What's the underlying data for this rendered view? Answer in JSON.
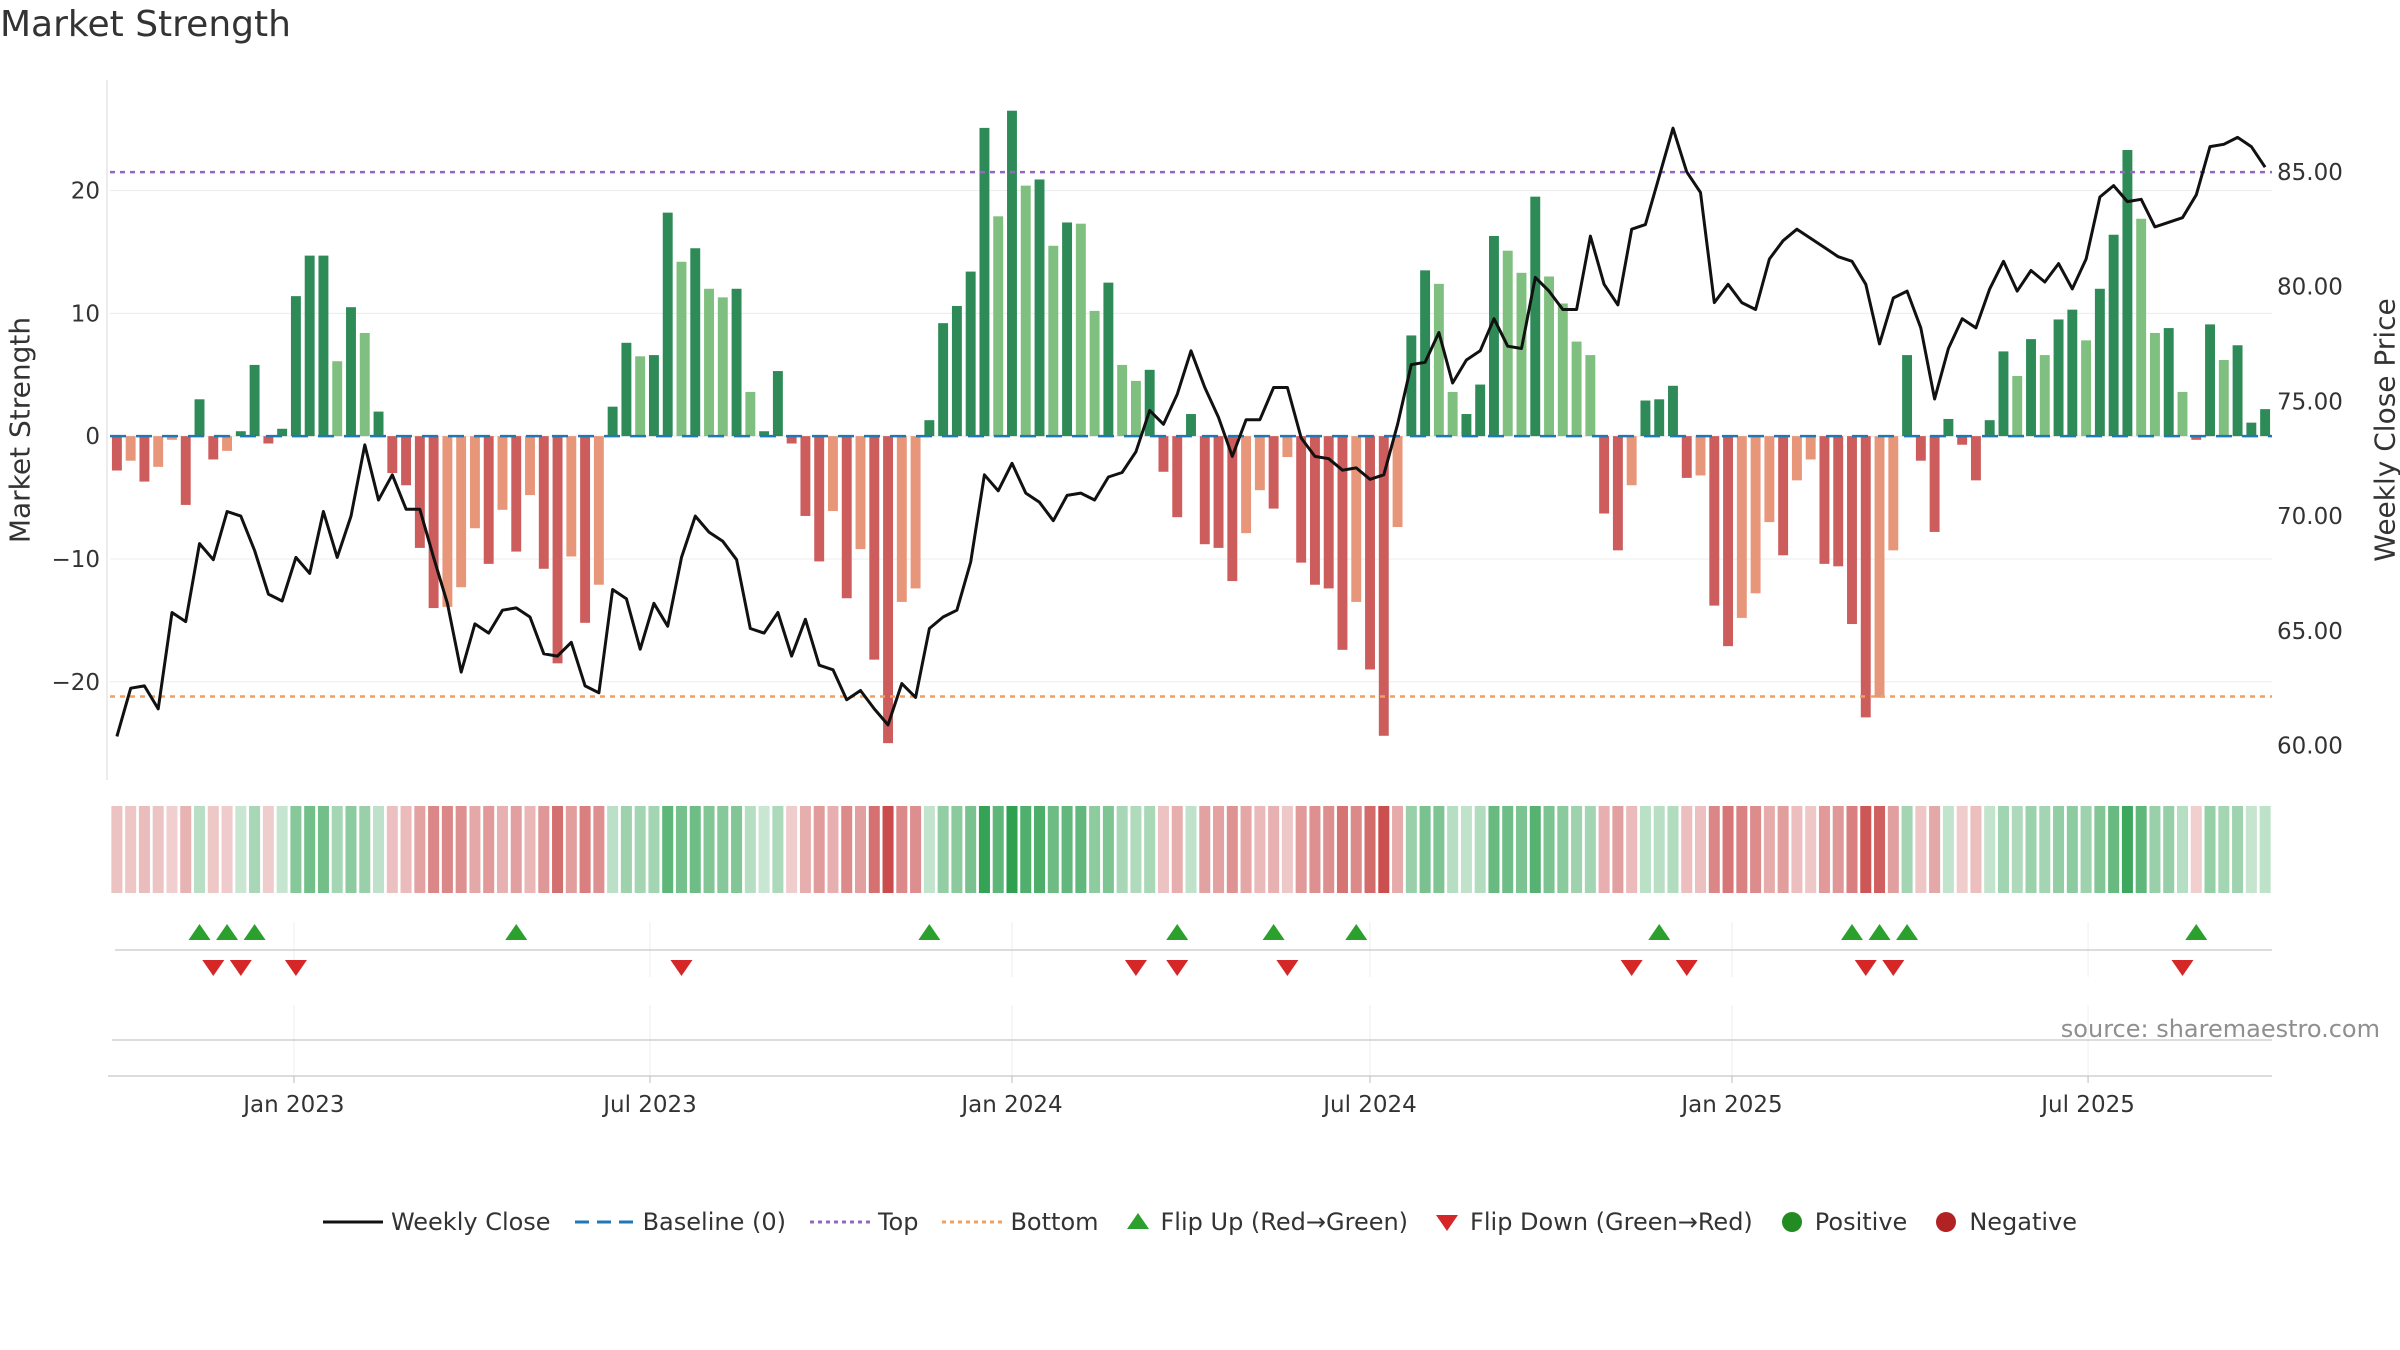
{
  "title": "Market Strength",
  "source": "source: sharemaestro.com",
  "legend": [
    {
      "label": "Weekly Close",
      "kind": "line-solid",
      "color": "#111111"
    },
    {
      "label": "Baseline (0)",
      "kind": "line-dash",
      "color": "#1f77b4"
    },
    {
      "label": "Top",
      "kind": "line-dot",
      "color": "#9467bd"
    },
    {
      "label": "Bottom",
      "kind": "line-dot",
      "color": "#f0a060"
    },
    {
      "label": "Flip Up (Red→Green)",
      "kind": "tri-up",
      "color": "#2ca02c"
    },
    {
      "label": "Flip Down (Green→Red)",
      "kind": "tri-down",
      "color": "#d62728"
    },
    {
      "label": "Positive",
      "kind": "circle",
      "color": "#228b22"
    },
    {
      "label": "Negative",
      "kind": "circle",
      "color": "#b22222"
    }
  ],
  "chart_data": {
    "type": "bar",
    "title": "Market Strength",
    "ylabel": "Market Strength",
    "y2label": "Weekly Close Price",
    "ylim": [
      -28,
      29
    ],
    "y2lim": [
      58.5,
      89
    ],
    "yticks": [
      20,
      10,
      0,
      -10,
      -20
    ],
    "y2ticks": [
      85.0,
      80.0,
      75.0,
      70.0,
      65.0,
      60.0
    ],
    "top_level": 21.5,
    "bottom_level": -21.2,
    "x_start": "2022-10-03",
    "x_ticks": [
      {
        "label": "Jan 2023",
        "date": "2023-01-01"
      },
      {
        "label": "Jul 2023",
        "date": "2023-07-01"
      },
      {
        "label": "Jan 2024",
        "date": "2024-01-01"
      },
      {
        "label": "Jul 2024",
        "date": "2024-07-01"
      },
      {
        "label": "Jan 2025",
        "date": "2025-01-01"
      },
      {
        "label": "Jul 2025",
        "date": "2025-07-01"
      }
    ],
    "strength": [
      -2.8,
      -2,
      -3.7,
      -2.5,
      -0.3,
      -5.6,
      3,
      -1.9,
      -1.2,
      0.4,
      5.8,
      -0.6,
      0.6,
      11.4,
      14.7,
      14.7,
      6.1,
      10.5,
      8.4,
      2,
      -3,
      -4,
      -9.1,
      -14,
      -13.9,
      -12.3,
      -7.5,
      -10.4,
      -6,
      -9.4,
      -4.8,
      -10.8,
      -18.5,
      -9.8,
      -15.2,
      -12.1,
      2.4,
      7.6,
      6.5,
      6.6,
      18.2,
      14.2,
      15.3,
      12,
      11.3,
      12,
      3.6,
      0.4,
      5.3,
      -0.6,
      -6.5,
      -10.2,
      -6.1,
      -13.2,
      -9.2,
      -18.2,
      -25,
      -13.5,
      -12.4,
      1.3,
      9.2,
      10.6,
      13.4,
      25.1,
      17.9,
      26.5,
      20.4,
      20.9,
      15.5,
      17.4,
      17.3,
      10.2,
      12.5,
      5.8,
      4.5,
      5.4,
      -2.9,
      -6.6,
      1.8,
      -8.8,
      -9.1,
      -11.8,
      -7.9,
      -4.4,
      -5.9,
      -1.7,
      -10.3,
      -12.1,
      -12.4,
      -17.4,
      -13.5,
      -19,
      -24.4,
      -7.4,
      8.2,
      13.5,
      12.4,
      3.6,
      1.8,
      4.2,
      16.3,
      15.1,
      13.3,
      19.5,
      13,
      10.8,
      7.7,
      6.6,
      -6.3,
      -9.3,
      -4,
      2.9,
      3,
      4.1,
      -3.4,
      -3.2,
      -13.8,
      -17.1,
      -14.8,
      -12.8,
      -7,
      -9.7,
      -3.6,
      -1.9,
      -10.4,
      -10.6,
      -15.3,
      -22.9,
      -21.3,
      -9.3,
      6.6,
      -2,
      -7.8,
      1.4,
      -0.7,
      -3.6,
      1.3,
      6.9,
      4.9,
      7.9,
      6.6,
      9.5,
      10.3,
      7.8,
      12,
      16.4,
      23.3,
      17.7,
      8.4,
      8.8,
      3.6,
      -0.3,
      9.1,
      6.2,
      7.4,
      1.1,
      2.2
    ],
    "close": [
      60.4,
      62.5,
      62.6,
      61.6,
      65.8,
      65.4,
      68.8,
      68.1,
      70.2,
      70,
      68.5,
      66.6,
      66.3,
      68.2,
      67.5,
      70.2,
      68.2,
      70,
      73.1,
      70.7,
      71.8,
      70.3,
      70.3,
      68.2,
      66.2,
      63.2,
      65.3,
      64.9,
      65.9,
      66,
      65.6,
      64,
      63.9,
      64.5,
      62.6,
      62.3,
      66.8,
      66.4,
      64.2,
      66.2,
      65.2,
      68.2,
      70,
      69.3,
      68.9,
      68.1,
      65.1,
      64.9,
      65.8,
      63.9,
      65.5,
      63.5,
      63.3,
      62,
      62.4,
      61.6,
      60.9,
      62.7,
      62.1,
      65.1,
      65.6,
      65.9,
      68,
      71.8,
      71.1,
      72.3,
      71,
      70.6,
      69.8,
      70.9,
      71,
      70.7,
      71.7,
      71.9,
      72.8,
      74.6,
      74,
      75.3,
      77.2,
      75.6,
      74.3,
      72.6,
      74.2,
      74.2,
      75.6,
      75.6,
      73.4,
      72.6,
      72.5,
      72,
      72.1,
      71.6,
      71.8,
      74,
      76.6,
      76.7,
      78,
      75.8,
      76.8,
      77.2,
      78.6,
      77.4,
      77.3,
      80.4,
      79.8,
      79,
      79,
      82.2,
      80.1,
      79.2,
      82.5,
      82.7,
      84.8,
      86.9,
      85,
      84.1,
      79.3,
      80.1,
      79.3,
      79,
      81.2,
      82,
      82.5,
      82.1,
      81.7,
      81.3,
      81.1,
      80.1,
      77.5,
      79.5,
      79.8,
      78.2,
      75.1,
      77.3,
      78.6,
      78.2,
      79.9,
      81.1,
      79.8,
      80.7,
      80.2,
      81,
      79.9,
      81.2,
      83.9,
      84.4,
      83.7,
      83.8,
      82.6,
      82.8,
      83,
      84,
      86.1,
      86.2,
      86.5,
      86.1,
      85.2
    ],
    "flip_up_index": [
      6,
      8,
      10,
      29,
      59,
      77,
      84,
      90,
      112,
      126,
      128,
      130,
      151
    ],
    "flip_down_index": [
      7,
      9,
      13,
      41,
      74,
      77,
      85,
      110,
      114,
      127,
      129,
      150
    ]
  }
}
